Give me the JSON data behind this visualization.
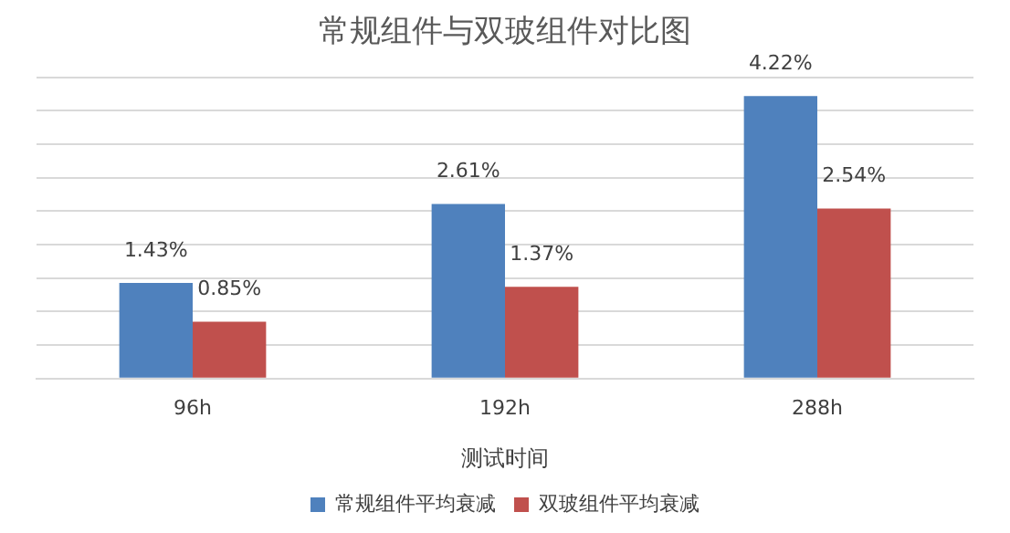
{
  "chart_data": {
    "type": "bar",
    "title": "常规组件与双玻组件对比图",
    "xlabel": "测试时间",
    "categories": [
      "96h",
      "192h",
      "288h"
    ],
    "series": [
      {
        "name": "常规组件平均衰减",
        "color": "#4f81bd",
        "values": [
          1.43,
          2.61,
          4.22
        ],
        "value_labels": [
          "1.43%",
          "2.61%",
          "4.22%"
        ]
      },
      {
        "name": "双玻组件平均衰减",
        "color": "#c0504d",
        "values": [
          0.85,
          1.37,
          2.54
        ],
        "value_labels": [
          "0.85%",
          "1.37%",
          "2.54%"
        ]
      }
    ],
    "ylim": [
      0,
      4.5
    ],
    "yticks": [
      {
        "value": 0,
        "label": null
      },
      {
        "value": 0.5,
        "label": null
      },
      {
        "value": 1,
        "label": null
      },
      {
        "value": 1.5,
        "label": null
      },
      {
        "value": 2,
        "label": null
      },
      {
        "value": 2.5,
        "label": null
      },
      {
        "value": 3,
        "label": null
      },
      {
        "value": 3.5,
        "label": null
      },
      {
        "value": 4,
        "label": null
      },
      {
        "value": 4.5,
        "label": null
      }
    ],
    "tick_labels": "x",
    "grid": "y",
    "legend": "bottom"
  }
}
